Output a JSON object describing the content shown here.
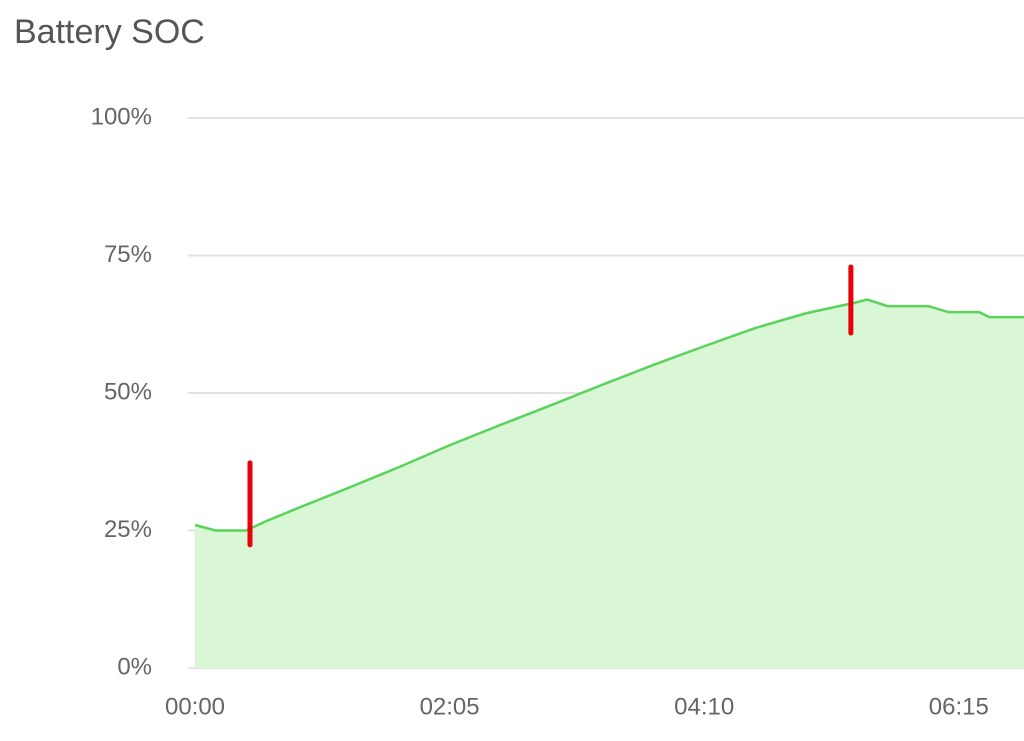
{
  "chart_data": {
    "type": "area",
    "title": "Battery SOC",
    "x": [
      "00:00",
      "00:10",
      "00:25",
      "00:35",
      "00:50",
      "01:15",
      "01:40",
      "02:05",
      "02:30",
      "02:55",
      "03:20",
      "03:45",
      "04:10",
      "04:35",
      "05:00",
      "05:25",
      "05:30",
      "05:40",
      "06:00",
      "06:10",
      "06:25",
      "06:30",
      "06:47"
    ],
    "series": [
      {
        "name": "SOC",
        "color": "#5ad35a",
        "fill": "#d9f6d5",
        "values": [
          26,
          25,
          25,
          26.7,
          29,
          32.7,
          36.5,
          40.5,
          44.2,
          47.8,
          51.5,
          55.1,
          58.5,
          61.8,
          64.5,
          66.5,
          67,
          65.8,
          65.8,
          64.7,
          64.7,
          63.8,
          63.8
        ]
      }
    ],
    "markers": [
      {
        "x": "00:27",
        "low": 22.4,
        "high": 37.3
      },
      {
        "x": "05:22",
        "low": 60.9,
        "high": 72.9
      }
    ],
    "marker_color": "#e8000b",
    "xlim": [
      "00:00",
      "06:47"
    ],
    "xticks": [
      "00:00",
      "02:05",
      "04:10",
      "06:15"
    ],
    "ylim": [
      0,
      100
    ],
    "yticks": [
      {
        "value": 0,
        "label": "0%"
      },
      {
        "value": 25,
        "label": "25%"
      },
      {
        "value": 50,
        "label": "50%"
      },
      {
        "value": 75,
        "label": "75%"
      },
      {
        "value": 100,
        "label": "100%"
      }
    ],
    "grid": true
  }
}
